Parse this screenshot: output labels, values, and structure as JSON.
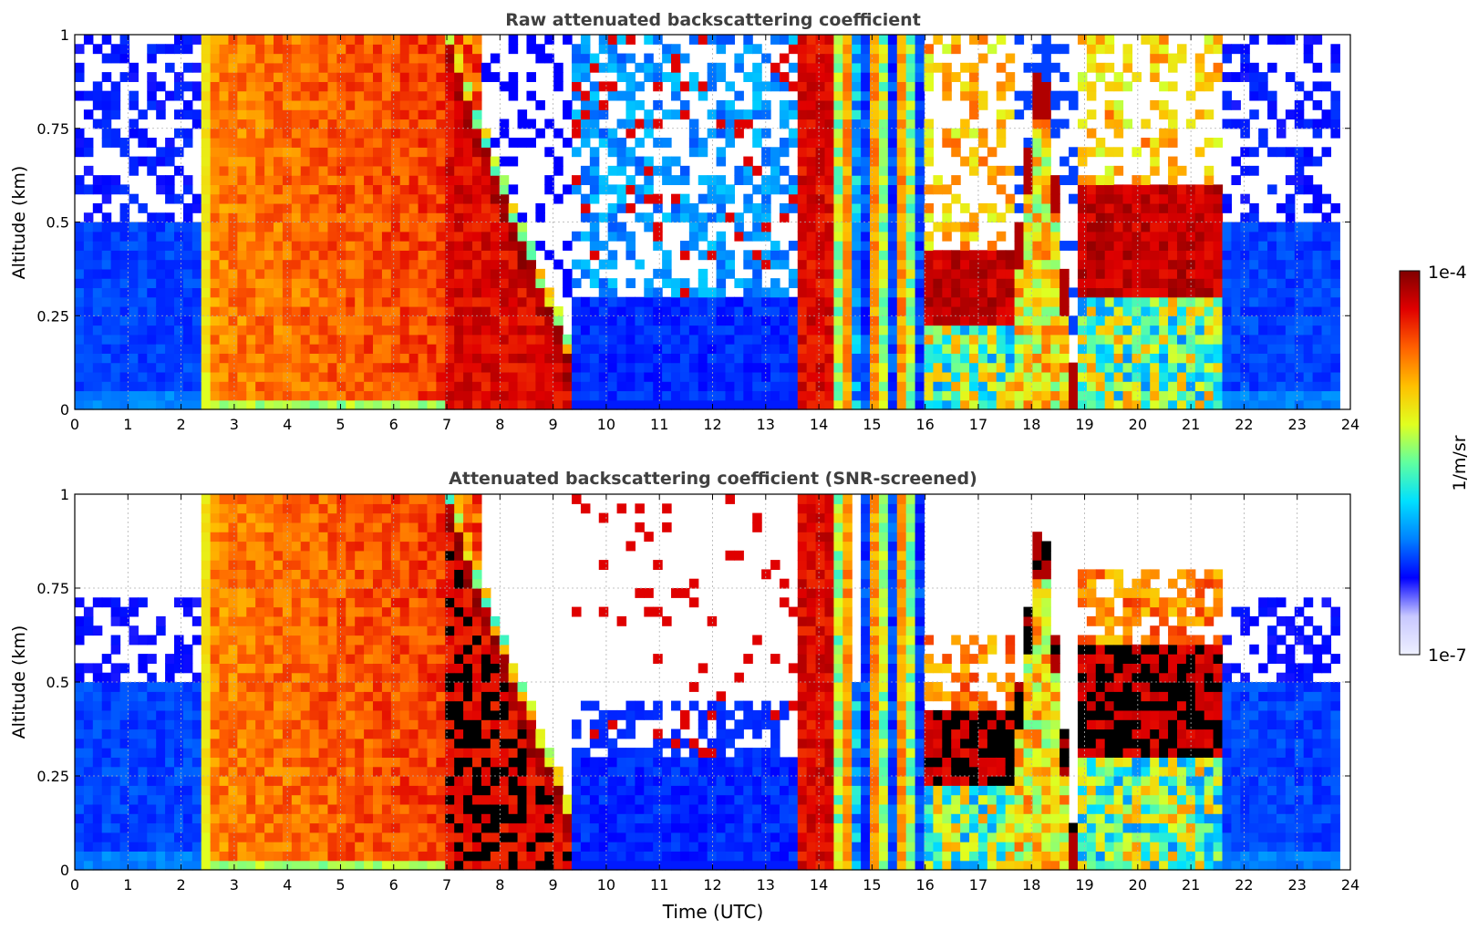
{
  "chart_data": {
    "type": "heatmap",
    "shared": {
      "xlabel": "Time (UTC)",
      "ylabel": "Altitude (km)",
      "xlim": [
        0,
        24
      ],
      "ylim": [
        0,
        1
      ],
      "xticks": [
        "0",
        "1",
        "2",
        "3",
        "4",
        "5",
        "6",
        "7",
        "8",
        "9",
        "10",
        "11",
        "12",
        "13",
        "14",
        "15",
        "16",
        "17",
        "18",
        "19",
        "20",
        "21",
        "22",
        "23",
        "24"
      ],
      "yticks": [
        "0",
        "0.25",
        "0.5",
        "0.75",
        "1"
      ],
      "ytick_values": [
        0,
        0.25,
        0.5,
        0.75,
        1
      ],
      "grid": true,
      "data_extent_hours": [
        0,
        23.8
      ]
    },
    "panels": [
      {
        "id": "raw",
        "title": "Raw attenuated backscattering coefficient",
        "screened": false
      },
      {
        "id": "snr",
        "title": "Attenuated backscattering coefficient (SNR-screened)",
        "screened": true
      }
    ],
    "colorbar": {
      "label": "1/m/sr",
      "min_label": "1e-7",
      "max_label": "1e-4",
      "scale": "log",
      "range": [
        1e-07,
        0.0001
      ],
      "colormap": "jet",
      "colors": [
        "#eef0ff",
        "#c8c8ff",
        "#0000ff",
        "#0080ff",
        "#00e0ff",
        "#60ffa0",
        "#e0ff20",
        "#ffc000",
        "#ff6000",
        "#e00000",
        "#800000"
      ]
    },
    "regimes": [
      {
        "t": [
          0.0,
          2.4
        ],
        "kind": "clear",
        "aerosol_top_km": 0.5
      },
      {
        "t": [
          2.4,
          7.0
        ],
        "kind": "fog_saturated",
        "intensity": 0.78
      },
      {
        "t": [
          7.0,
          9.3
        ],
        "kind": "descending_layer",
        "top_km": [
          1.0,
          0.15
        ],
        "intensity": 0.95
      },
      {
        "t": [
          9.3,
          13.6
        ],
        "kind": "broken_clouds",
        "low_km": 0.3
      },
      {
        "t": [
          13.6,
          14.3
        ],
        "kind": "dense_cloud",
        "intensity": 0.85
      },
      {
        "t": [
          14.3,
          15.9
        ],
        "kind": "columns_mixed"
      },
      {
        "t": [
          15.9,
          17.6
        ],
        "kind": "cloud_layer",
        "base_km": 0.22,
        "top_km": 0.42,
        "intensity": 0.95
      },
      {
        "t": [
          17.6,
          18.8
        ],
        "kind": "rising_layer",
        "intensity": 0.95
      },
      {
        "t": [
          18.8,
          21.6
        ],
        "kind": "cloud_layer",
        "base_km": 0.3,
        "top_km": 0.6,
        "intensity": 0.9
      },
      {
        "t": [
          21.6,
          23.8
        ],
        "kind": "clear",
        "aerosol_top_km": 0.5
      }
    ]
  }
}
